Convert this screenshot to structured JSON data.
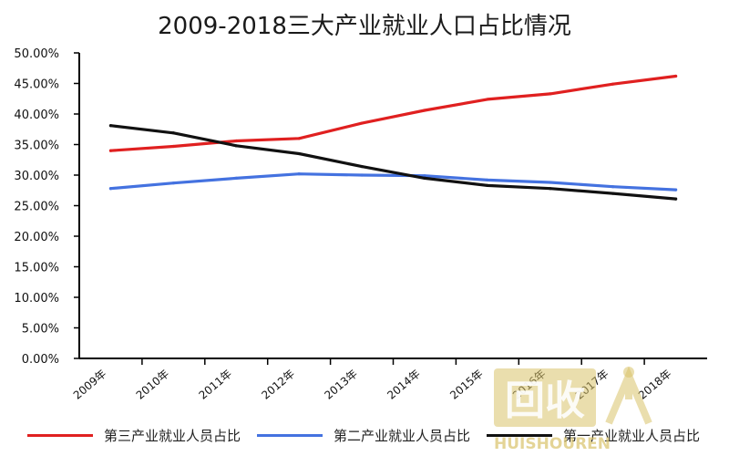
{
  "chart_data": {
    "type": "line",
    "title": "2009-2018三大产业就业人口占比情况",
    "categories": [
      "2009年",
      "2010年",
      "2011年",
      "2012年",
      "2013年",
      "2014年",
      "2015年",
      "2016年",
      "2017年",
      "2018年"
    ],
    "ylim": [
      0,
      50
    ],
    "yticks": [
      "0.00%",
      "5.00%",
      "10.00%",
      "15.00%",
      "20.00%",
      "25.00%",
      "30.00%",
      "35.00%",
      "40.00%",
      "45.00%",
      "50.00%"
    ],
    "grid": false,
    "legend_position": "bottom",
    "series": [
      {
        "name": "第三产业就业人员占比",
        "color": "#e02020",
        "values": [
          34.0,
          34.7,
          35.6,
          36.0,
          38.5,
          40.6,
          42.4,
          43.3,
          44.9,
          46.2
        ]
      },
      {
        "name": "第二产业就业人员占比",
        "color": "#4472e0",
        "values": [
          27.8,
          28.7,
          29.5,
          30.2,
          30.0,
          29.9,
          29.2,
          28.8,
          28.1,
          27.6
        ]
      },
      {
        "name": "第一产业就业人员占比",
        "color": "#111111",
        "values": [
          38.1,
          36.9,
          34.8,
          33.5,
          31.4,
          29.5,
          28.3,
          27.8,
          27.0,
          26.1
        ]
      }
    ]
  },
  "watermark": {
    "big_text": "回收",
    "small_text": "HUISHOUREN"
  }
}
